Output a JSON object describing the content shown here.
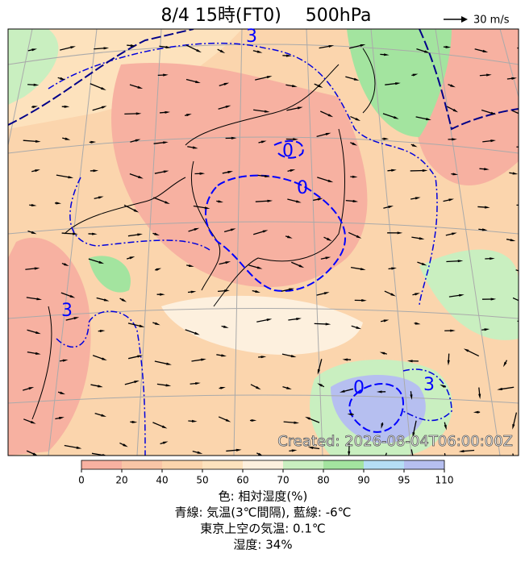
{
  "title": "8/4 15時(FT0)",
  "level": "500hPa",
  "wind_scale": "30 m/s",
  "created": "Created: 2026-08-04T06:00:00Z",
  "contour_labels": [
    "3",
    "0",
    "0",
    "3",
    "0",
    "3"
  ],
  "colorbar": {
    "ticks": [
      0,
      20,
      40,
      50,
      60,
      70,
      80,
      90,
      95,
      110
    ],
    "colors": [
      "#f7b1a1",
      "#f9c5a6",
      "#fbd5ad",
      "#fde2bd",
      "#fdf0de",
      "#c9efc0",
      "#a3e49f",
      "#b5def5",
      "#b6bff0"
    ]
  },
  "captions": [
    "色: 相対湿度(%)",
    "青線: 気温(3℃間隔), 藍線: -6℃",
    "東京上空の気温: 0.1℃",
    "湿度: 34%"
  ]
}
